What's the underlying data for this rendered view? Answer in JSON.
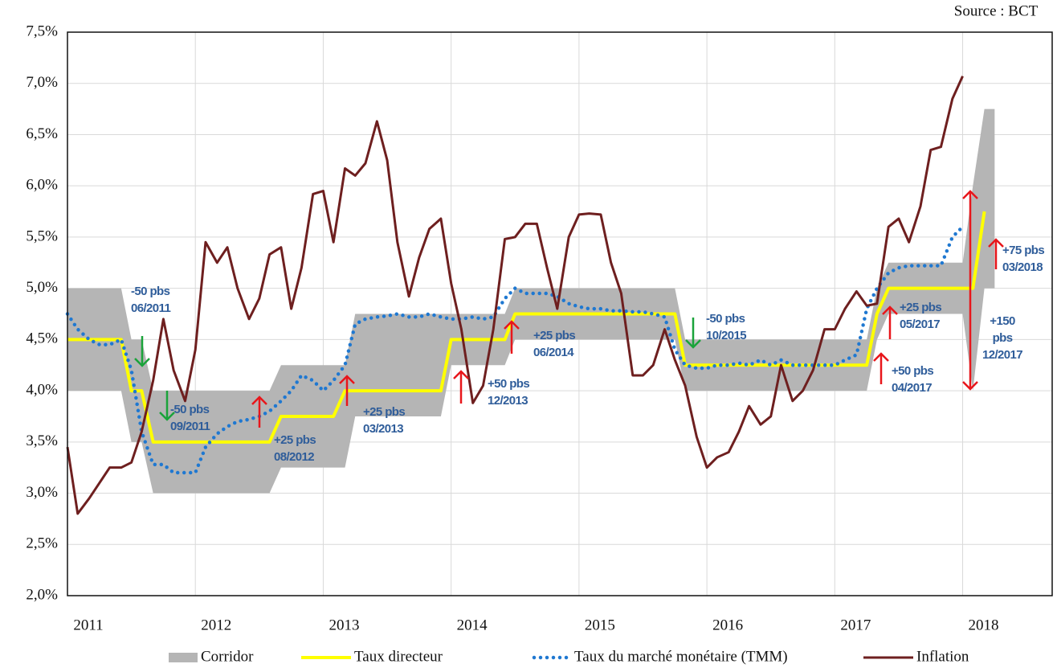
{
  "chart_data": {
    "type": "line",
    "source": "Source : BCT",
    "x": [
      2011,
      2011.08,
      2011.17,
      2011.25,
      2011.33,
      2011.42,
      2011.5,
      2011.58,
      2011.67,
      2011.75,
      2011.83,
      2011.92,
      2012,
      2012.08,
      2012.17,
      2012.25,
      2012.33,
      2012.42,
      2012.5,
      2012.58,
      2012.67,
      2012.75,
      2012.83,
      2012.92,
      2013,
      2013.08,
      2013.17,
      2013.25,
      2013.33,
      2013.42,
      2013.5,
      2013.58,
      2013.67,
      2013.75,
      2013.83,
      2013.92,
      2014,
      2014.08,
      2014.17,
      2014.25,
      2014.33,
      2014.42,
      2014.5,
      2014.58,
      2014.67,
      2014.75,
      2014.83,
      2014.92,
      2015,
      2015.08,
      2015.17,
      2015.25,
      2015.33,
      2015.42,
      2015.5,
      2015.58,
      2015.67,
      2015.75,
      2015.83,
      2015.92,
      2016,
      2016.08,
      2016.17,
      2016.25,
      2016.33,
      2016.42,
      2016.5,
      2016.58,
      2016.67,
      2016.75,
      2016.83,
      2016.92,
      2017,
      2017.08,
      2017.17,
      2017.25,
      2017.33,
      2017.42,
      2017.5,
      2017.58,
      2017.67,
      2017.75,
      2017.83,
      2017.92,
      2018,
      2018.08,
      2018.17,
      2018.25
    ],
    "series": [
      {
        "name": "Corridor",
        "kind": "band",
        "color": "#b5b5b5",
        "upper": [
          5,
          5,
          5,
          5,
          5,
          5,
          4.5,
          4.5,
          4,
          4,
          4,
          4,
          4,
          4,
          4,
          4,
          4,
          4,
          4,
          4,
          4.25,
          4.25,
          4.25,
          4.25,
          4.25,
          4.25,
          4.25,
          4.75,
          4.75,
          4.75,
          4.75,
          4.75,
          4.75,
          4.75,
          4.75,
          4.75,
          4.75,
          4.75,
          4.75,
          4.75,
          4.75,
          4.75,
          5,
          5,
          5,
          5,
          5,
          5,
          5,
          5,
          5,
          5,
          5,
          5,
          5,
          5,
          5,
          5,
          4.5,
          4.5,
          4.5,
          4.5,
          4.5,
          4.5,
          4.5,
          4.5,
          4.5,
          4.5,
          4.5,
          4.5,
          4.5,
          4.5,
          4.5,
          4.5,
          4.5,
          4.5,
          5,
          5.25,
          5.25,
          5.25,
          5.25,
          5.25,
          5.25,
          5.25,
          5.25,
          6,
          6.75,
          6.75
        ],
        "lower": [
          4,
          4,
          4,
          4,
          4,
          4,
          3.5,
          3.5,
          3,
          3,
          3,
          3,
          3,
          3,
          3,
          3,
          3,
          3,
          3,
          3,
          3.25,
          3.25,
          3.25,
          3.25,
          3.25,
          3.25,
          3.25,
          3.75,
          3.75,
          3.75,
          3.75,
          3.75,
          3.75,
          3.75,
          3.75,
          3.75,
          4.25,
          4.25,
          4.25,
          4.25,
          4.25,
          4.25,
          4.5,
          4.5,
          4.5,
          4.5,
          4.5,
          4.5,
          4.5,
          4.5,
          4.5,
          4.5,
          4.5,
          4.5,
          4.5,
          4.5,
          4.5,
          4.5,
          4,
          4,
          4,
          4,
          4,
          4,
          4,
          4,
          4,
          4,
          4,
          4,
          4,
          4,
          4,
          4,
          4,
          4,
          4.5,
          4.75,
          4.75,
          4.75,
          4.75,
          4.75,
          4.75,
          4.75,
          4.75,
          4,
          5,
          5
        ]
      },
      {
        "name": "Taux directeur",
        "kind": "line",
        "color": "#ffff00",
        "values": [
          4.5,
          4.5,
          4.5,
          4.5,
          4.5,
          4.5,
          4,
          4,
          3.5,
          3.5,
          3.5,
          3.5,
          3.5,
          3.5,
          3.5,
          3.5,
          3.5,
          3.5,
          3.5,
          3.5,
          3.75,
          3.75,
          3.75,
          3.75,
          3.75,
          3.75,
          4,
          4,
          4,
          4,
          4,
          4,
          4,
          4,
          4,
          4,
          4.5,
          4.5,
          4.5,
          4.5,
          4.5,
          4.5,
          4.75,
          4.75,
          4.75,
          4.75,
          4.75,
          4.75,
          4.75,
          4.75,
          4.75,
          4.75,
          4.75,
          4.75,
          4.75,
          4.75,
          4.75,
          4.75,
          4.25,
          4.25,
          4.25,
          4.25,
          4.25,
          4.25,
          4.25,
          4.25,
          4.25,
          4.25,
          4.25,
          4.25,
          4.25,
          4.25,
          4.25,
          4.25,
          4.25,
          4.25,
          4.75,
          5,
          5,
          5,
          5,
          5,
          5,
          5,
          5,
          5,
          5.75,
          null
        ]
      },
      {
        "name": "Taux du marché monétaire (TMM)",
        "kind": "dots",
        "color": "#1f78d1",
        "values": [
          4.75,
          4.6,
          4.5,
          4.45,
          4.45,
          4.5,
          4.2,
          3.6,
          3.28,
          3.28,
          3.2,
          3.2,
          3.2,
          3.45,
          3.58,
          3.65,
          3.7,
          3.72,
          3.75,
          3.8,
          3.9,
          4,
          4.15,
          4.1,
          4,
          4.1,
          4.25,
          4.65,
          4.7,
          4.72,
          4.73,
          4.75,
          4.72,
          4.72,
          4.75,
          4.72,
          4.7,
          4.7,
          4.72,
          4.7,
          4.72,
          4.9,
          5,
          4.95,
          4.95,
          4.95,
          4.92,
          4.85,
          4.82,
          4.8,
          4.8,
          4.78,
          4.78,
          4.77,
          4.77,
          4.75,
          4.72,
          4.4,
          4.25,
          4.22,
          4.22,
          4.25,
          4.25,
          4.27,
          4.25,
          4.3,
          4.25,
          4.3,
          4.25,
          4.25,
          4.25,
          4.25,
          4.25,
          4.3,
          4.35,
          4.8,
          5,
          5.15,
          5.2,
          5.22,
          5.22,
          5.22,
          5.22,
          5.5,
          5.6,
          null,
          null,
          null
        ]
      },
      {
        "name": "Inflation",
        "kind": "line",
        "color": "#6e1f1f",
        "values": [
          3.45,
          2.8,
          2.95,
          3.1,
          3.25,
          3.25,
          3.3,
          3.6,
          4.1,
          4.7,
          4.2,
          3.9,
          4.4,
          5.45,
          5.25,
          5.4,
          5,
          4.7,
          4.9,
          5.33,
          5.4,
          4.8,
          5.2,
          5.92,
          5.95,
          5.45,
          6.17,
          6.1,
          6.22,
          6.63,
          6.25,
          5.45,
          4.92,
          5.3,
          5.58,
          5.68,
          5.05,
          4.6,
          3.88,
          4.05,
          4.6,
          5.48,
          5.5,
          5.63,
          5.63,
          5.2,
          4.8,
          5.5,
          5.72,
          5.73,
          5.72,
          5.25,
          4.95,
          4.15,
          4.15,
          4.25,
          4.6,
          4.3,
          4.05,
          3.55,
          3.25,
          3.35,
          3.4,
          3.6,
          3.85,
          3.67,
          3.75,
          4.25,
          3.9,
          4,
          4.2,
          4.6,
          4.6,
          4.8,
          4.97,
          4.83,
          4.85,
          5.6,
          5.68,
          5.45,
          5.8,
          6.35,
          6.38,
          6.85,
          7.07,
          null,
          null,
          null
        ]
      }
    ],
    "annotations": [
      {
        "text": [
          "-50 pbs",
          "06/2011"
        ]
      },
      {
        "text": [
          "-50 pbs",
          "09/2011"
        ]
      },
      {
        "text": [
          "+25 pbs",
          "08/2012"
        ]
      },
      {
        "text": [
          "+25 pbs",
          "03/2013"
        ]
      },
      {
        "text": [
          "+50 pbs",
          "12/2013"
        ]
      },
      {
        "text": [
          "+25 pbs",
          "06/2014"
        ]
      },
      {
        "text": [
          "-50 pbs",
          "10/2015"
        ]
      },
      {
        "text": [
          "+25 pbs",
          "05/2017"
        ]
      },
      {
        "text": [
          "+50 pbs",
          "04/2017"
        ]
      },
      {
        "text": [
          "+150",
          "pbs",
          "12/2017"
        ]
      },
      {
        "text": [
          "+75 pbs",
          "03/2018"
        ]
      }
    ],
    "xlim": [
      2011,
      2018.7
    ],
    "xticks": [
      2011,
      2012,
      2013,
      2014,
      2015,
      2016,
      2017,
      2018
    ],
    "ylim": [
      2,
      7.5
    ],
    "yticks": [
      {
        "value": 2,
        "label": "2,0%"
      },
      {
        "value": 2.5,
        "label": "2,5%"
      },
      {
        "value": 3,
        "label": "3,0%"
      },
      {
        "value": 3.5,
        "label": "3,5%"
      },
      {
        "value": 4,
        "label": "4,0%"
      },
      {
        "value": 4.5,
        "label": "4,5%"
      },
      {
        "value": 5,
        "label": "5,0%"
      },
      {
        "value": 5.5,
        "label": "5,5%"
      },
      {
        "value": 6,
        "label": "6,0%"
      },
      {
        "value": 6.5,
        "label": "6,5%"
      },
      {
        "value": 7,
        "label": "7,0%"
      },
      {
        "value": 7.5,
        "label": "7,5%"
      }
    ],
    "grid": true,
    "legend": "bottom"
  }
}
